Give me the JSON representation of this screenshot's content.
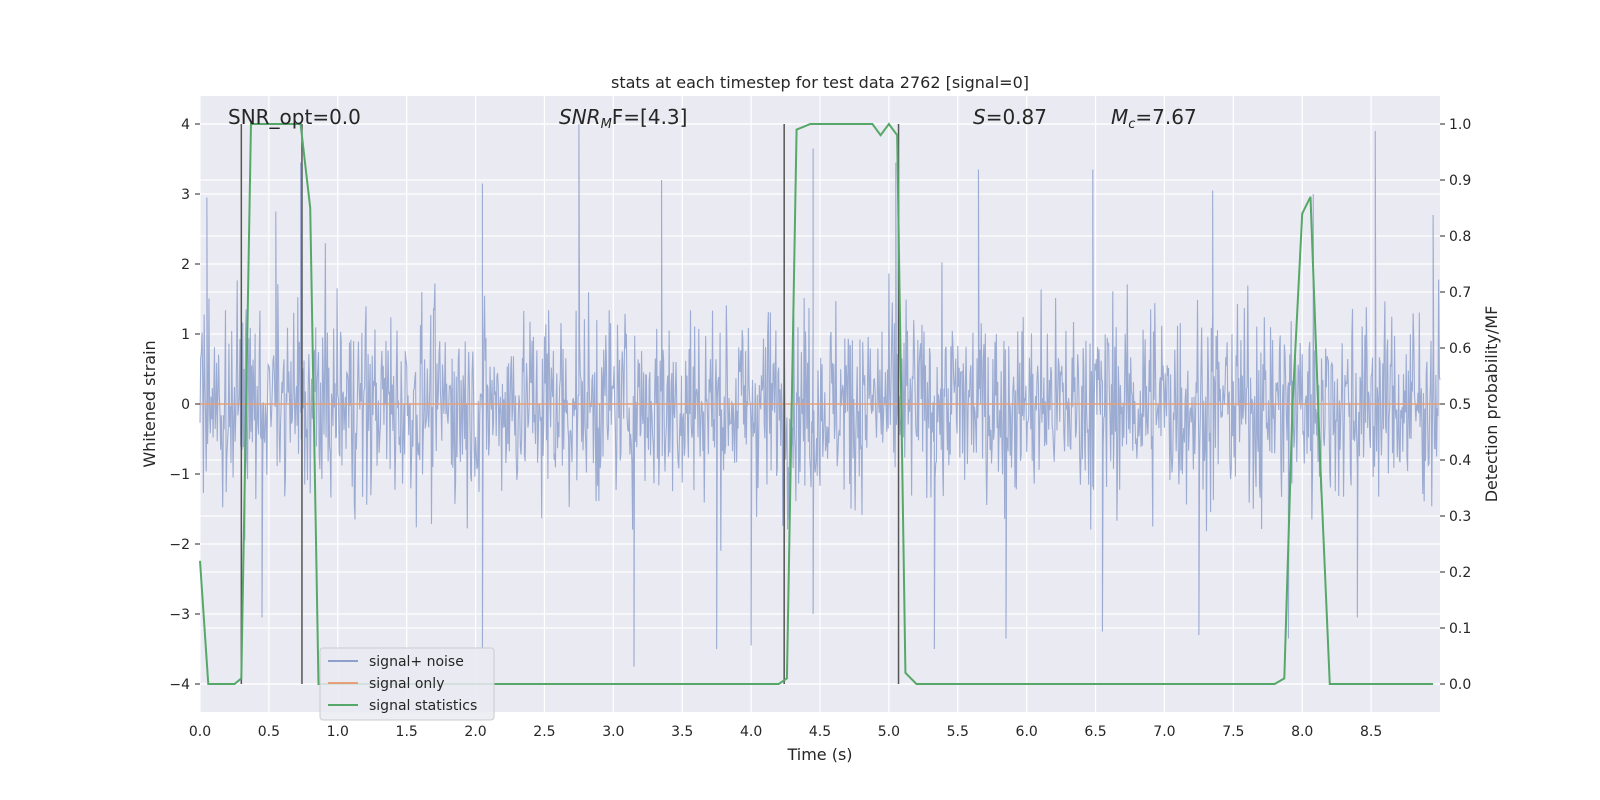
{
  "chart_data": {
    "type": "line",
    "title": "stats at each timestep for test data 2762 [signal=0]",
    "xlabel": "Time (s)",
    "ylabel": "Whitened strain",
    "ylabel_right": "Detection probability/MF",
    "xlim": [
      0,
      9
    ],
    "ylim": [
      -4.4,
      4.4
    ],
    "ylim_right": [
      -0.05,
      1.05
    ],
    "grid": true,
    "x_ticks": [
      0.0,
      0.5,
      1.0,
      1.5,
      2.0,
      2.5,
      3.0,
      3.5,
      4.0,
      4.5,
      5.0,
      5.5,
      6.0,
      6.5,
      7.0,
      7.5,
      8.0,
      8.5
    ],
    "x_tick_labels": [
      "0.0",
      "0.5",
      "1.0",
      "1.5",
      "2.0",
      "2.5",
      "3.0",
      "3.5",
      "4.0",
      "4.5",
      "5.0",
      "5.5",
      "6.0",
      "6.5",
      "7.0",
      "7.5",
      "8.0",
      "8.5"
    ],
    "y_ticks": [
      -4,
      -3,
      -2,
      -1,
      0,
      1,
      2,
      3,
      4
    ],
    "y_tick_labels": [
      "−4",
      "−3",
      "−2",
      "−1",
      "0",
      "1",
      "2",
      "3",
      "4"
    ],
    "y_ticks_right": [
      0.0,
      0.1,
      0.2,
      0.3,
      0.4,
      0.5,
      0.6,
      0.7,
      0.8,
      0.9,
      1.0
    ],
    "y_tick_labels_right": [
      "0.0",
      "0.1",
      "0.2",
      "0.3",
      "0.4",
      "0.5",
      "0.6",
      "0.7",
      "0.8",
      "0.9",
      "1.0"
    ],
    "annotations": {
      "snr_opt": "SNR_opt=0.0",
      "snr_mf_name": "SNR",
      "snr_mf_sub": "M",
      "snr_mf_rest": "F=[4.3]",
      "s_name": "S",
      "s_rest": "=0.87",
      "mc_name": "M",
      "mc_sub": "c",
      "mc_rest": "=7.67"
    },
    "legend": {
      "position": "lower-left",
      "entries": [
        "signal+ noise",
        "signal only",
        "signal statistics"
      ]
    },
    "series": [
      {
        "name": "signal+ noise",
        "color": "#8da0cb",
        "axis": "left",
        "style": "dense noise trace, amplitude mostly within ±2.5, extremes near 3.9 and -3.8",
        "envelope_x": [
          0.0,
          0.5,
          1.0,
          1.5,
          2.0,
          2.5,
          3.0,
          3.5,
          4.0,
          4.5,
          5.0,
          5.5,
          6.0,
          6.5,
          7.0,
          7.5,
          8.0,
          8.5,
          9.0
        ],
        "envelope_upper": [
          2.9,
          2.9,
          2.7,
          2.6,
          3.0,
          2.9,
          3.0,
          2.9,
          3.1,
          3.5,
          3.0,
          3.5,
          3.3,
          3.3,
          3.0,
          2.9,
          2.8,
          3.9,
          2.9
        ],
        "envelope_lower": [
          -2.4,
          -3.0,
          -2.8,
          -2.7,
          -3.4,
          -3.3,
          -3.7,
          -3.4,
          -3.4,
          -2.9,
          -3.0,
          -3.5,
          -3.0,
          -3.0,
          -3.2,
          -3.0,
          -3.4,
          -3.0,
          -2.9
        ],
        "peak_points": [
          [
            0.05,
            2.95
          ],
          [
            0.55,
            2.75
          ],
          [
            0.73,
            3.45
          ],
          [
            2.05,
            3.15
          ],
          [
            2.75,
            4.0
          ],
          [
            3.35,
            3.2
          ],
          [
            4.45,
            3.65
          ],
          [
            5.05,
            3.45
          ],
          [
            5.65,
            3.35
          ],
          [
            6.48,
            3.35
          ],
          [
            7.35,
            3.05
          ],
          [
            8.08,
            3.0
          ],
          [
            8.53,
            3.9
          ],
          [
            8.95,
            2.7
          ]
        ],
        "trough_points": [
          [
            0.45,
            -3.05
          ],
          [
            2.05,
            -3.5
          ],
          [
            3.15,
            -3.75
          ],
          [
            3.75,
            -3.5
          ],
          [
            4.0,
            -3.45
          ],
          [
            4.45,
            -3.0
          ],
          [
            5.33,
            -3.5
          ],
          [
            5.85,
            -3.35
          ],
          [
            6.55,
            -3.25
          ],
          [
            7.25,
            -3.3
          ],
          [
            7.9,
            -3.35
          ],
          [
            8.4,
            -3.05
          ]
        ]
      },
      {
        "name": "signal only",
        "color": "#e5a07a",
        "axis": "left",
        "x": [
          0.0,
          9.0
        ],
        "y": [
          0.0,
          0.0
        ]
      },
      {
        "name": "signal statistics",
        "color": "#55a868",
        "axis": "right",
        "x": [
          0.0,
          0.06,
          0.25,
          0.3,
          0.37,
          0.73,
          0.8,
          0.86,
          0.93,
          1.0,
          4.2,
          4.26,
          4.33,
          4.43,
          4.88,
          4.94,
          5.0,
          5.06,
          5.12,
          5.2,
          7.8,
          7.87,
          7.93,
          8.0,
          8.06,
          8.13,
          8.2,
          8.3,
          8.95
        ],
        "y": [
          0.22,
          0.0,
          0.0,
          0.01,
          1.0,
          1.0,
          0.85,
          0.0,
          0.0,
          0.0,
          0.0,
          0.01,
          0.99,
          1.0,
          1.0,
          0.98,
          1.0,
          0.98,
          0.02,
          0.0,
          0.0,
          0.01,
          0.5,
          0.84,
          0.87,
          0.4,
          0.0,
          0.0,
          0.0
        ]
      }
    ],
    "detection_markers": {
      "color": "#555555",
      "x": [
        0.3,
        0.74,
        4.24,
        5.07
      ],
      "y_from": -0.0,
      "y_to": 1.0
    }
  }
}
